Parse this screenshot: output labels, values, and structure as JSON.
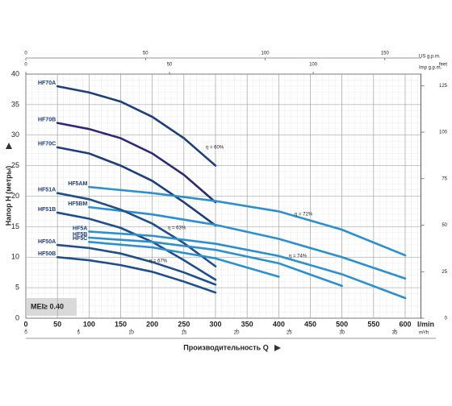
{
  "chart_data": {
    "type": "line",
    "y_label": "Напор H (метры)",
    "x_label": "Производительность Q",
    "badge": "MEI≥ 0.40",
    "x_unit": "l/min",
    "xlim": [
      0,
      625
    ],
    "xticks": [
      0,
      50,
      100,
      150,
      200,
      250,
      300,
      350,
      400,
      450,
      500,
      550,
      600
    ],
    "ylim": [
      0,
      40
    ],
    "yticks": [
      0,
      5,
      10,
      15,
      20,
      25,
      30,
      35,
      40
    ],
    "grid": true,
    "m3h_axis": {
      "unit": "m³/h",
      "lim": [
        0,
        37.5
      ],
      "ticks": [
        0,
        5,
        10,
        15,
        20,
        25,
        30,
        35
      ]
    },
    "us_gpm_axis": {
      "unit": "US g.p.m.",
      "lim": [
        0,
        165.1
      ],
      "ticks": [
        0,
        50,
        100,
        150
      ]
    },
    "imp_gpm_axis": {
      "unit": "Imp g.p.m.",
      "lim": [
        0,
        137.5
      ],
      "ticks": [
        0,
        50,
        100
      ]
    },
    "feet_axis": {
      "unit": "feet",
      "lim": [
        0,
        131.2
      ],
      "ticks": [
        0,
        25,
        50,
        75,
        100,
        125
      ]
    },
    "series": [
      {
        "name": "HF70A",
        "color": "#1d3f7a",
        "x": [
          50,
          100,
          150,
          200,
          250,
          300
        ],
        "values": [
          38,
          37,
          35.5,
          33,
          29.5,
          25
        ]
      },
      {
        "name": "HF70B",
        "color": "#2c2a78",
        "x": [
          50,
          100,
          150,
          200,
          250,
          300
        ],
        "values": [
          32,
          31,
          29.5,
          27,
          23.5,
          19
        ]
      },
      {
        "name": "HF70C",
        "color": "#1d3f7a",
        "x": [
          50,
          100,
          150,
          200,
          250,
          300
        ],
        "values": [
          28,
          27,
          25,
          22.5,
          19,
          15.2
        ]
      },
      {
        "name": "HF5AM",
        "color": "#2b8fd0",
        "x": [
          100,
          200,
          300,
          400,
          500,
          600
        ],
        "values": [
          21.5,
          20.5,
          19.2,
          17.5,
          14.5,
          10.3
        ]
      },
      {
        "name": "HF5BM",
        "color": "#2b8fd0",
        "x": [
          100,
          200,
          300,
          400,
          500,
          600
        ],
        "values": [
          18.2,
          17,
          15.3,
          13,
          10,
          6.5
        ]
      },
      {
        "name": "HF51A",
        "color": "#1f4e8c",
        "x": [
          50,
          100,
          150,
          200,
          250,
          300
        ],
        "values": [
          20.5,
          19.5,
          17.8,
          15.5,
          12.3,
          8.5
        ]
      },
      {
        "name": "HF51B",
        "color": "#1f4e8c",
        "x": [
          50,
          100,
          150,
          200,
          250,
          300
        ],
        "values": [
          17.3,
          16.3,
          14.8,
          12.5,
          9.5,
          6.3
        ]
      },
      {
        "name": "HF5A",
        "color": "#2b8fd0",
        "x": [
          100,
          200,
          300,
          400,
          500,
          600
        ],
        "values": [
          14.2,
          13.5,
          12.2,
          10.2,
          7.2,
          3.3
        ]
      },
      {
        "name": "HF5B",
        "color": "#2b8fd0",
        "x": [
          100,
          200,
          300,
          400,
          500
        ],
        "values": [
          13.2,
          12.5,
          11.2,
          9,
          5.3
        ]
      },
      {
        "name": "HF5C",
        "color": "#2b8fd0",
        "x": [
          100,
          200,
          300,
          400
        ],
        "values": [
          12.5,
          11.6,
          9.8,
          6.8
        ]
      },
      {
        "name": "HF50A",
        "color": "#1f4e8c",
        "x": [
          50,
          100,
          150,
          200,
          250,
          300
        ],
        "values": [
          12,
          11.5,
          10.6,
          9.2,
          7.5,
          5.5
        ]
      },
      {
        "name": "HF50B",
        "color": "#1f4e8c",
        "x": [
          50,
          100,
          150,
          200,
          250,
          300
        ],
        "values": [
          10,
          9.5,
          8.7,
          7.6,
          6,
          4.2
        ]
      }
    ],
    "annotations": [
      "η = 60%",
      "η = 63%",
      "η = 67%",
      "η = 72%",
      "η = 74%"
    ]
  }
}
